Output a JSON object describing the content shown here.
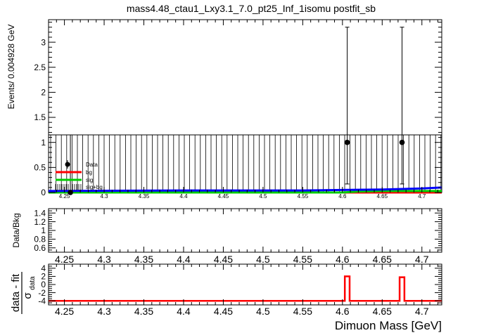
{
  "chart_data": [
    {
      "type": "scatter",
      "panel": "main",
      "title": "mass4.48_ctau1_Lxy3.1_7.0_pt25_Inf_1isomu   postfit_sb",
      "ylabel": "Events/ 0.004928 GeV",
      "xlim": [
        4.23,
        4.725
      ],
      "ylim": [
        0,
        3.45
      ],
      "x_tick_labels": [
        "4.25",
        "4.3",
        "4.35",
        "4.4",
        "4.45",
        "4.5",
        "4.55",
        "4.6",
        "4.65",
        "4.7"
      ],
      "y_tick_labels": [
        "0",
        "0.5",
        "1",
        "1.5",
        "2",
        "2.5",
        "3"
      ],
      "legend": {
        "placement": "bottom-left",
        "entries": [
          {
            "label": "Data",
            "color": "#000000",
            "style": "marker"
          },
          {
            "label": "bg",
            "color": "#ff0000",
            "style": "line"
          },
          {
            "label": "sig",
            "color": "#00cc00",
            "style": "line"
          },
          {
            "label": "sig+bg",
            "color": "#000000",
            "style": "hatch"
          }
        ]
      },
      "points": [
        {
          "x": 4.2575,
          "y": 0,
          "yerr_low": 0,
          "yerr_high": 1.15
        },
        {
          "x": 4.606,
          "y": 1,
          "yerr_low": 0.83,
          "yerr_high": 2.3
        },
        {
          "x": 4.675,
          "y": 1,
          "yerr_low": 0.83,
          "yerr_high": 2.3
        }
      ],
      "band_upper": 1.15,
      "bg_curve": {
        "x": [
          4.23,
          4.55,
          4.6,
          4.65,
          4.725
        ],
        "y": [
          0.0,
          0.0,
          0.0,
          0.0,
          0.0
        ]
      },
      "sig_curve": {
        "x": [
          4.23,
          4.6,
          4.62,
          4.65,
          4.725
        ],
        "y": [
          0.0,
          0.0,
          0.02,
          0.03,
          0.03
        ]
      },
      "sigbg_curve": {
        "x": [
          4.23,
          4.4,
          4.55,
          4.6,
          4.65,
          4.7,
          4.725
        ],
        "y": [
          0.03,
          0.04,
          0.04,
          0.05,
          0.06,
          0.08,
          0.1
        ]
      }
    },
    {
      "type": "scatter",
      "panel": "ratio",
      "ylabel": "Data/Bkg",
      "xlim": [
        4.23,
        4.725
      ],
      "ylim": [
        0.5,
        1.5
      ],
      "x_tick_labels": [
        "4.25",
        "4.3",
        "4.35",
        "4.4",
        "4.45",
        "4.5",
        "4.55",
        "4.6",
        "4.65",
        "4.7"
      ],
      "y_tick_labels": [
        "0.6",
        "0.8",
        "1",
        "1.2",
        "1.4"
      ]
    },
    {
      "type": "line",
      "panel": "pull",
      "ylabel_top": "data - fit",
      "ylabel_bottom": "σ",
      "ylabel_sub": "data",
      "xlabel": "Dimuon Mass [GeV]",
      "xlim": [
        4.23,
        4.725
      ],
      "ylim": [
        -5,
        5
      ],
      "x_tick_labels": [
        "4.25",
        "4.3",
        "4.35",
        "4.4",
        "4.45",
        "4.5",
        "4.55",
        "4.6",
        "4.65",
        "4.7"
      ],
      "y_tick_labels": [
        "-4",
        "-2",
        "0",
        "2",
        "4"
      ],
      "color": "#ff0000",
      "baseline": -4,
      "pulses": [
        {
          "x0": 4.603,
          "x1": 4.609,
          "y": 2
        },
        {
          "x0": 4.672,
          "x1": 4.678,
          "y": 1.8
        }
      ]
    }
  ]
}
